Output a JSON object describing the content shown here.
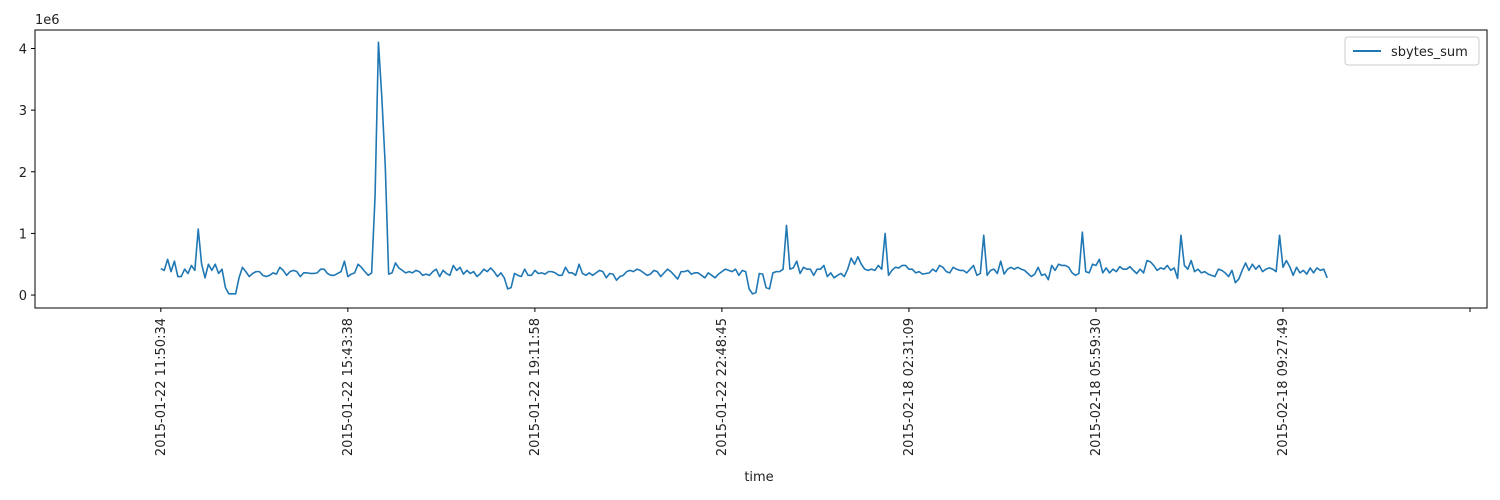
{
  "chart_data": {
    "type": "line",
    "title": "",
    "xlabel": "time",
    "ylabel": "",
    "y_offset_label": "1e6",
    "y_scale": 1000000,
    "ylim": [
      -0.21,
      4.3
    ],
    "yticks": [
      0,
      1,
      2,
      3,
      4
    ],
    "ytick_labels": [
      "0",
      "1",
      "2",
      "3",
      "4"
    ],
    "xlim": [
      -37,
      390
    ],
    "xticks": [
      0,
      55,
      110,
      165,
      220,
      275,
      330,
      385
    ],
    "xtick_labels": [
      "2015-01-22 11:50:34",
      "2015-01-22 15:43:38",
      "2015-01-22 19:11:58",
      "2015-01-22 22:48:45",
      "2015-02-18 02:31:09",
      "2015-02-18 05:59:30",
      "2015-02-18 09:27:49",
      ""
    ],
    "grid": false,
    "legend": {
      "position": "top-right",
      "entries": [
        "sbytes_sum"
      ]
    },
    "series": [
      {
        "name": "sbytes_sum",
        "color": "#1f77b4",
        "x_start": 0,
        "x_step": 1,
        "values": [
          0.43,
          0.4,
          0.58,
          0.38,
          0.55,
          0.3,
          0.3,
          0.42,
          0.35,
          0.48,
          0.4,
          1.07,
          0.5,
          0.28,
          0.5,
          0.4,
          0.5,
          0.35,
          0.42,
          0.12,
          0.02,
          0.02,
          0.02,
          0.28,
          0.45,
          0.38,
          0.3,
          0.35,
          0.38,
          0.38,
          0.32,
          0.3,
          0.32,
          0.36,
          0.34,
          0.45,
          0.4,
          0.32,
          0.38,
          0.4,
          0.38,
          0.3,
          0.36,
          0.36,
          0.35,
          0.35,
          0.36,
          0.42,
          0.42,
          0.35,
          0.32,
          0.32,
          0.35,
          0.38,
          0.55,
          0.3,
          0.34,
          0.36,
          0.5,
          0.45,
          0.38,
          0.32,
          0.36,
          1.6,
          4.1,
          3.2,
          2.1,
          0.34,
          0.36,
          0.52,
          0.44,
          0.4,
          0.36,
          0.38,
          0.36,
          0.4,
          0.38,
          0.32,
          0.34,
          0.32,
          0.38,
          0.42,
          0.3,
          0.4,
          0.35,
          0.32,
          0.48,
          0.4,
          0.45,
          0.34,
          0.4,
          0.35,
          0.38,
          0.3,
          0.35,
          0.42,
          0.38,
          0.44,
          0.38,
          0.3,
          0.36,
          0.28,
          0.1,
          0.12,
          0.35,
          0.32,
          0.3,
          0.42,
          0.32,
          0.32,
          0.4,
          0.35,
          0.36,
          0.34,
          0.38,
          0.38,
          0.36,
          0.32,
          0.32,
          0.45,
          0.36,
          0.36,
          0.32,
          0.5,
          0.35,
          0.32,
          0.36,
          0.32,
          0.36,
          0.4,
          0.38,
          0.28,
          0.35,
          0.34,
          0.24,
          0.3,
          0.32,
          0.38,
          0.4,
          0.38,
          0.42,
          0.4,
          0.36,
          0.32,
          0.34,
          0.4,
          0.38,
          0.3,
          0.36,
          0.42,
          0.38,
          0.32,
          0.26,
          0.38,
          0.38,
          0.4,
          0.34,
          0.36,
          0.36,
          0.32,
          0.28,
          0.36,
          0.32,
          0.28,
          0.34,
          0.38,
          0.42,
          0.4,
          0.38,
          0.42,
          0.32,
          0.4,
          0.38,
          0.1,
          0.02,
          0.04,
          0.35,
          0.34,
          0.12,
          0.1,
          0.36,
          0.38,
          0.38,
          0.42,
          1.13,
          0.42,
          0.44,
          0.55,
          0.35,
          0.45,
          0.42,
          0.42,
          0.32,
          0.42,
          0.42,
          0.48,
          0.3,
          0.36,
          0.28,
          0.32,
          0.35,
          0.3,
          0.42,
          0.6,
          0.5,
          0.62,
          0.5,
          0.42,
          0.4,
          0.42,
          0.4,
          0.48,
          0.42,
          1.0,
          0.32,
          0.4,
          0.45,
          0.44,
          0.48,
          0.48,
          0.42,
          0.42,
          0.36,
          0.38,
          0.34,
          0.35,
          0.36,
          0.42,
          0.38,
          0.48,
          0.45,
          0.38,
          0.36,
          0.45,
          0.42,
          0.4,
          0.4,
          0.36,
          0.42,
          0.48,
          0.32,
          0.35,
          0.97,
          0.32,
          0.4,
          0.42,
          0.35,
          0.55,
          0.34,
          0.42,
          0.45,
          0.42,
          0.45,
          0.42,
          0.4,
          0.35,
          0.3,
          0.34,
          0.45,
          0.32,
          0.34,
          0.25,
          0.48,
          0.4,
          0.5,
          0.48,
          0.48,
          0.45,
          0.36,
          0.32,
          0.35,
          1.02,
          0.38,
          0.36,
          0.5,
          0.48,
          0.58,
          0.36,
          0.44,
          0.36,
          0.42,
          0.38,
          0.46,
          0.42,
          0.42,
          0.46,
          0.4,
          0.35,
          0.42,
          0.36,
          0.56,
          0.54,
          0.48,
          0.4,
          0.44,
          0.42,
          0.48,
          0.4,
          0.44,
          0.27,
          0.97,
          0.48,
          0.42,
          0.56,
          0.38,
          0.42,
          0.36,
          0.38,
          0.34,
          0.32,
          0.3,
          0.42,
          0.4,
          0.36,
          0.3,
          0.4,
          0.2,
          0.26,
          0.4,
          0.52,
          0.4,
          0.5,
          0.42,
          0.48,
          0.38,
          0.42,
          0.44,
          0.42,
          0.38,
          0.97,
          0.45,
          0.56,
          0.46,
          0.32,
          0.45,
          0.36,
          0.4,
          0.34,
          0.44,
          0.36,
          0.44,
          0.4,
          0.42,
          0.28
        ]
      }
    ]
  }
}
